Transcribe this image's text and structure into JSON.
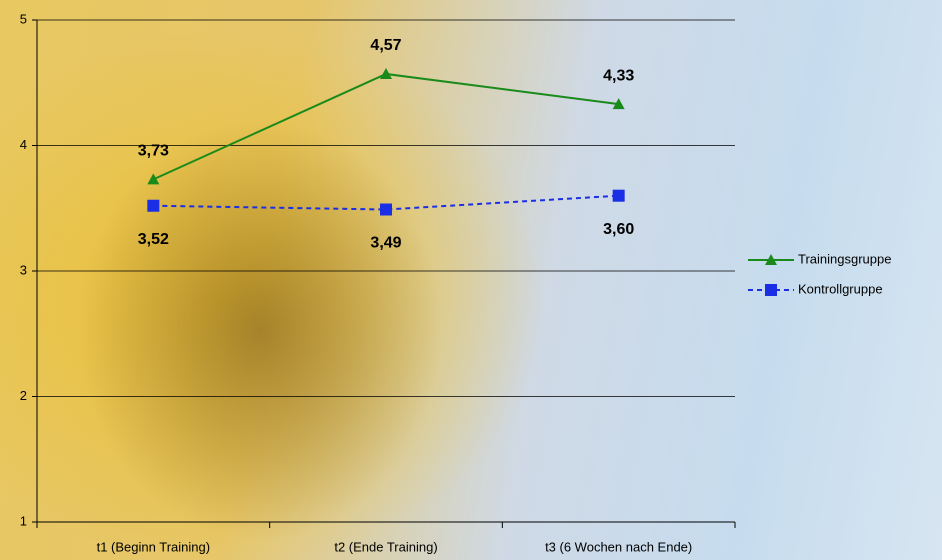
{
  "chart_data": {
    "type": "line",
    "categories": [
      "t1 (Beginn Training)",
      "t2 (Ende Training)",
      "t3 (6 Wochen nach Ende)"
    ],
    "series": [
      {
        "name": "Trainingsgruppe",
        "color": "#1a8a1a",
        "marker": "triangle",
        "line_style": "solid",
        "values": [
          3.73,
          4.57,
          4.33
        ],
        "value_labels": [
          "3,73",
          "4,57",
          "4,33"
        ]
      },
      {
        "name": "Kontrollgruppe",
        "color": "#1a2ee6",
        "marker": "square",
        "line_style": "dashed",
        "values": [
          3.52,
          3.49,
          3.6
        ],
        "value_labels": [
          "3,52",
          "3,49",
          "3,60"
        ]
      }
    ],
    "ylim": [
      1,
      5
    ],
    "yticks": [
      1,
      2,
      3,
      4,
      5
    ],
    "grid": true,
    "legend": "right"
  }
}
